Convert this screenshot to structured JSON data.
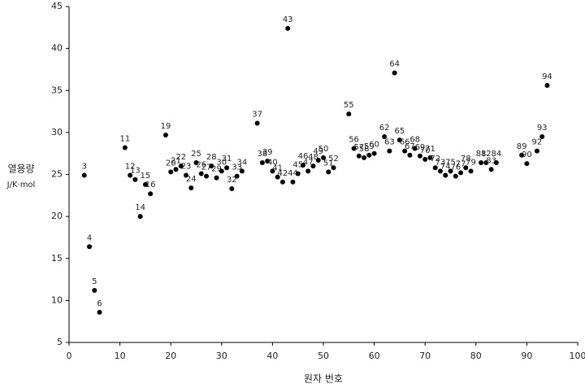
{
  "chart_data": {
    "type": "scatter",
    "xlabel": "원자 번호",
    "ylabel": "열용량",
    "yunit": "J/K·mol",
    "xlim": [
      0,
      100
    ],
    "xticks": [
      0,
      10,
      20,
      30,
      40,
      50,
      60,
      70,
      80,
      90,
      100
    ],
    "ylim": [
      5,
      45
    ],
    "yticks": [
      5,
      10,
      15,
      20,
      25,
      30,
      35,
      40,
      45
    ],
    "grid": false,
    "color": "#000000",
    "x": [
      3,
      4,
      5,
      6,
      11,
      12,
      13,
      14,
      15,
      16,
      19,
      20,
      21,
      22,
      23,
      24,
      25,
      26,
      27,
      28,
      29,
      30,
      31,
      32,
      33,
      34,
      37,
      38,
      39,
      40,
      41,
      42,
      43,
      44,
      45,
      46,
      47,
      48,
      49,
      50,
      51,
      52,
      55,
      56,
      57,
      58,
      59,
      60,
      62,
      63,
      64,
      65,
      66,
      67,
      68,
      69,
      70,
      71,
      72,
      73,
      74,
      75,
      76,
      77,
      78,
      79,
      81,
      82,
      83,
      84,
      89,
      90,
      92,
      93,
      94
    ],
    "values": [
      24.9,
      16.4,
      11.2,
      8.6,
      28.2,
      24.9,
      24.4,
      20.0,
      23.8,
      22.7,
      29.7,
      25.3,
      25.6,
      26.0,
      24.9,
      23.4,
      26.4,
      25.1,
      24.8,
      26.0,
      24.6,
      25.4,
      25.8,
      23.3,
      24.8,
      25.4,
      31.1,
      26.4,
      26.6,
      25.4,
      24.7,
      24.1,
      42.4,
      24.1,
      25.1,
      26.1,
      25.4,
      26.0,
      26.7,
      27.0,
      25.3,
      25.8,
      32.2,
      28.1,
      27.2,
      27.0,
      27.3,
      27.5,
      29.5,
      27.8,
      37.1,
      29.1,
      27.8,
      27.3,
      28.1,
      27.2,
      26.8,
      27.0,
      25.8,
      25.4,
      24.9,
      25.4,
      24.8,
      25.2,
      25.8,
      25.4,
      26.4,
      26.4,
      25.6,
      26.4,
      27.3,
      26.3,
      27.8,
      29.5,
      35.6
    ]
  }
}
